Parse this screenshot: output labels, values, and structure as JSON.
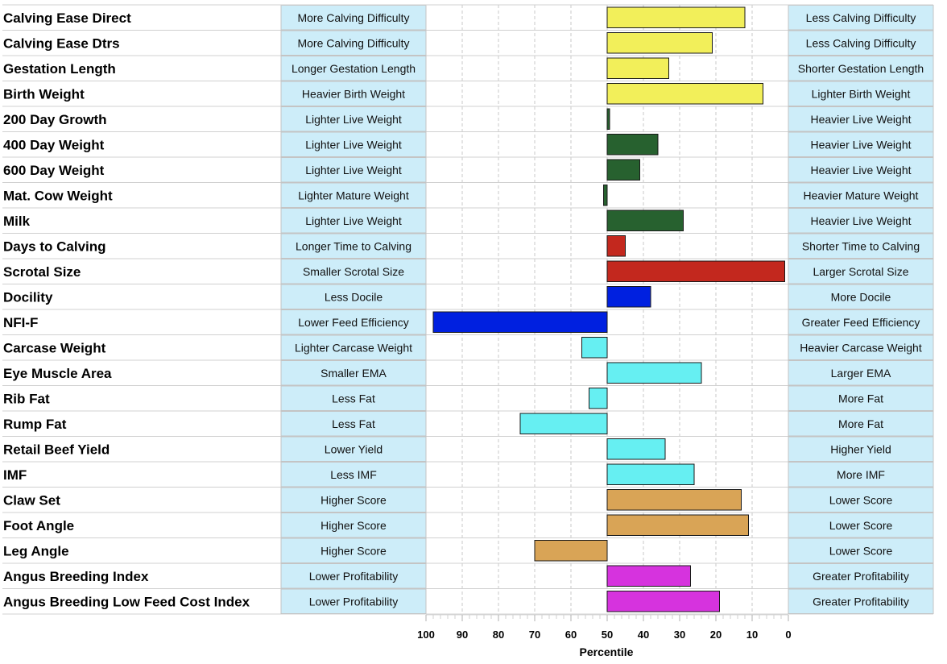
{
  "chart_data": {
    "type": "bar",
    "orientation": "horizontal",
    "xlabel": "Percentile",
    "xlim": [
      100,
      0
    ],
    "x_reversed": true,
    "baseline": 50,
    "major_ticks": [
      100,
      90,
      80,
      70,
      60,
      50,
      40,
      30,
      20,
      10,
      0
    ],
    "tick_labels": [
      "100",
      "90",
      "80",
      "70",
      "60",
      "50",
      "40",
      "30",
      "20",
      "10",
      "0"
    ],
    "grid": "vertical dashed",
    "legend": "none",
    "rows": [
      {
        "trait": "Calving Ease Direct",
        "left": "More Calving Difficulty",
        "right": "Less Calving Difficulty",
        "value": 12,
        "color": "#f2ef5a"
      },
      {
        "trait": "Calving Ease Dtrs",
        "left": "More Calving Difficulty",
        "right": "Less Calving Difficulty",
        "value": 21,
        "color": "#f2ef5a"
      },
      {
        "trait": "Gestation Length",
        "left": "Longer Gestation Length",
        "right": "Shorter Gestation Length",
        "value": 33,
        "color": "#f2ef5a"
      },
      {
        "trait": "Birth Weight",
        "left": "Heavier Birth Weight",
        "right": "Lighter Birth Weight",
        "value": 7,
        "color": "#f2ef5a"
      },
      {
        "trait": "200 Day Growth",
        "left": "Lighter Live Weight",
        "right": "Heavier Live Weight",
        "value": 49.5,
        "color": "#27612f"
      },
      {
        "trait": "400 Day Weight",
        "left": "Lighter Live Weight",
        "right": "Heavier Live Weight",
        "value": 36,
        "color": "#27612f"
      },
      {
        "trait": "600 Day Weight",
        "left": "Lighter Live Weight",
        "right": "Heavier Live Weight",
        "value": 41,
        "color": "#27612f"
      },
      {
        "trait": "Mat. Cow Weight",
        "left": "Lighter Mature Weight",
        "right": "Heavier Mature Weight",
        "value": 51,
        "color": "#27612f"
      },
      {
        "trait": "Milk",
        "left": "Lighter Live Weight",
        "right": "Heavier Live Weight",
        "value": 29,
        "color": "#27612f"
      },
      {
        "trait": "Days to Calving",
        "left": "Longer Time to Calving",
        "right": "Shorter Time to Calving",
        "value": 45,
        "color": "#c3281e"
      },
      {
        "trait": "Scrotal Size",
        "left": "Smaller Scrotal Size",
        "right": "Larger Scrotal Size",
        "value": 1,
        "color": "#c3281e"
      },
      {
        "trait": "Docility",
        "left": "Less Docile",
        "right": "More Docile",
        "value": 38,
        "color": "#0020e0"
      },
      {
        "trait": "NFI-F",
        "left": "Lower Feed Efficiency",
        "right": "Greater Feed Efficiency",
        "value": 98,
        "color": "#0020e0"
      },
      {
        "trait": "Carcase Weight",
        "left": "Lighter Carcase Weight",
        "right": "Heavier Carcase Weight",
        "value": 57,
        "color": "#66eff2"
      },
      {
        "trait": "Eye Muscle Area",
        "left": "Smaller EMA",
        "right": "Larger EMA",
        "value": 24,
        "color": "#66eff2"
      },
      {
        "trait": "Rib Fat",
        "left": "Less Fat",
        "right": "More Fat",
        "value": 55,
        "color": "#66eff2"
      },
      {
        "trait": "Rump Fat",
        "left": "Less Fat",
        "right": "More Fat",
        "value": 74,
        "color": "#66eff2"
      },
      {
        "trait": "Retail Beef Yield",
        "left": "Lower Yield",
        "right": "Higher Yield",
        "value": 34,
        "color": "#66eff2"
      },
      {
        "trait": "IMF",
        "left": "Less IMF",
        "right": "More IMF",
        "value": 26,
        "color": "#66eff2"
      },
      {
        "trait": "Claw Set",
        "left": "Higher Score",
        "right": "Lower Score",
        "value": 13,
        "color": "#d9a456"
      },
      {
        "trait": "Foot Angle",
        "left": "Higher Score",
        "right": "Lower Score",
        "value": 11,
        "color": "#d9a456"
      },
      {
        "trait": "Leg Angle",
        "left": "Higher Score",
        "right": "Lower Score",
        "value": 70,
        "color": "#d9a456"
      },
      {
        "trait": "Angus Breeding Index",
        "left": "Lower Profitability",
        "right": "Greater Profitability",
        "value": 27,
        "color": "#d633de"
      },
      {
        "trait": "Angus Breeding Low Feed Cost Index",
        "left": "Lower Profitability",
        "right": "Greater Profitability",
        "value": 19,
        "color": "#d633de"
      }
    ]
  }
}
